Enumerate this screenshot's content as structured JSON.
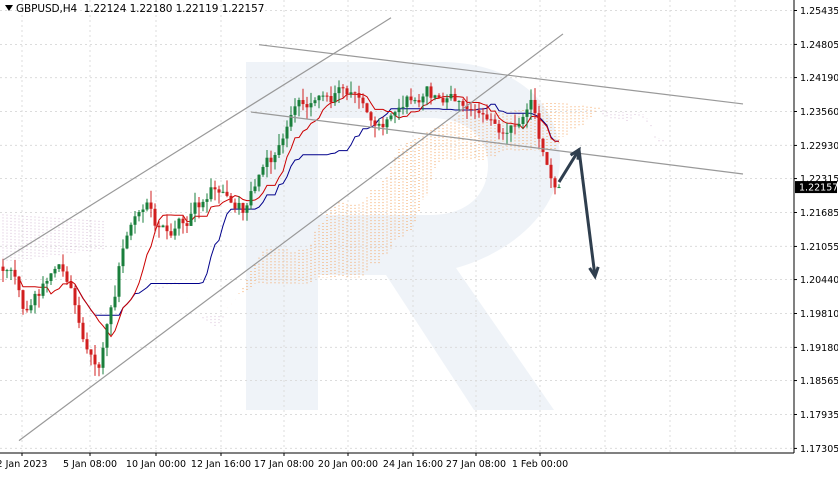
{
  "chart_data": {
    "type": "candlestick",
    "symbol": "GBPUSD,H4",
    "ohlc_header": [
      "1.22124",
      "1.22180",
      "1.22119",
      "1.22157"
    ],
    "current_price": "1.22157",
    "y_ticks": [
      "1.25435",
      "1.24805",
      "1.24190",
      "1.23560",
      "1.22930",
      "1.22315",
      "1.21685",
      "1.21055",
      "1.20440",
      "1.19810",
      "1.19180",
      "1.18565",
      "1.17935",
      "1.17305"
    ],
    "x_ticks": [
      "2 Jan 2023",
      "5 Jan 08:00",
      "10 Jan 00:00",
      "12 Jan 16:00",
      "17 Jan 08:00",
      "20 Jan 00:00",
      "24 Jan 16:00",
      "27 Jan 08:00",
      "1 Feb 00:00"
    ],
    "ylim": [
      1.1722,
      1.2563
    ],
    "bar_count": 140,
    "close_path": [
      [
        0,
        1.206
      ],
      [
        3,
        1.2055
      ],
      [
        5,
        1.1985
      ],
      [
        8,
        1.201
      ],
      [
        11,
        1.204
      ],
      [
        14,
        1.207
      ],
      [
        16,
        1.2045
      ],
      [
        18,
        1.2005
      ],
      [
        20,
        1.194
      ],
      [
        22,
        1.1905
      ],
      [
        24,
        1.188
      ],
      [
        26,
        1.196
      ],
      [
        28,
        1.202
      ],
      [
        30,
        1.21
      ],
      [
        32,
        1.215
      ],
      [
        34,
        1.217
      ],
      [
        36,
        1.2185
      ],
      [
        38,
        1.215
      ],
      [
        40,
        1.214
      ],
      [
        42,
        1.2125
      ],
      [
        44,
        1.215
      ],
      [
        46,
        1.2135
      ],
      [
        48,
        1.218
      ],
      [
        50,
        1.219
      ],
      [
        52,
        1.221
      ],
      [
        54,
        1.2205
      ],
      [
        56,
        1.22
      ],
      [
        58,
        1.218
      ],
      [
        60,
        1.2175
      ],
      [
        62,
        1.22
      ],
      [
        64,
        1.224
      ],
      [
        66,
        1.227
      ],
      [
        68,
        1.227
      ],
      [
        70,
        1.23
      ],
      [
        72,
        1.2345
      ],
      [
        74,
        1.2385
      ],
      [
        76,
        1.236
      ],
      [
        78,
        1.2375
      ],
      [
        80,
        1.2385
      ],
      [
        82,
        1.237
      ],
      [
        84,
        1.24
      ],
      [
        86,
        1.2395
      ],
      [
        88,
        1.2395
      ],
      [
        90,
        1.2365
      ],
      [
        92,
        1.2345
      ],
      [
        94,
        1.233
      ],
      [
        96,
        1.234
      ],
      [
        98,
        1.235
      ],
      [
        100,
        1.237
      ],
      [
        102,
        1.2385
      ],
      [
        104,
        1.2375
      ],
      [
        106,
        1.2395
      ],
      [
        108,
        1.238
      ],
      [
        110,
        1.2375
      ],
      [
        112,
        1.238
      ],
      [
        114,
        1.2375
      ],
      [
        116,
        1.2365
      ],
      [
        118,
        1.2355
      ],
      [
        120,
        1.2345
      ],
      [
        122,
        1.2335
      ],
      [
        124,
        1.2325
      ],
      [
        126,
        1.232
      ],
      [
        128,
        1.233
      ],
      [
        130,
        1.235
      ],
      [
        132,
        1.2385
      ],
      [
        134,
        1.231
      ],
      [
        136,
        1.2255
      ],
      [
        138,
        1.222
      ],
      [
        139,
        1.22157
      ]
    ],
    "overlays": {
      "tenkan_color": "#cc0000",
      "kijun_color": "#00008b",
      "cloud_up_color": "#f4a460",
      "cloud_down_color": "#d8bfd8",
      "channel_color": "#999999",
      "arrow_color": "#2f3e4e",
      "bull_candle_color": "#1a7f3c",
      "bear_candle_color": "#d11f1f"
    },
    "channels": [
      {
        "name": "ascending",
        "from": [
          4,
          1.1745
        ],
        "to": [
          140,
          1.25
        ]
      },
      {
        "name": "ascending-upper",
        "from": [
          0,
          1.208
        ],
        "to": [
          97,
          1.253
        ]
      },
      {
        "name": "descending-upper",
        "from": [
          64,
          1.248
        ],
        "to": [
          185,
          1.237
        ]
      },
      {
        "name": "descending-lower",
        "from": [
          62,
          1.2355
        ],
        "to": [
          185,
          1.224
        ]
      }
    ],
    "forecast_arrow": [
      [
        139,
        1.2225
      ],
      [
        144,
        1.2285
      ],
      [
        148,
        1.205
      ]
    ],
    "grid": true,
    "watermark": "R"
  }
}
